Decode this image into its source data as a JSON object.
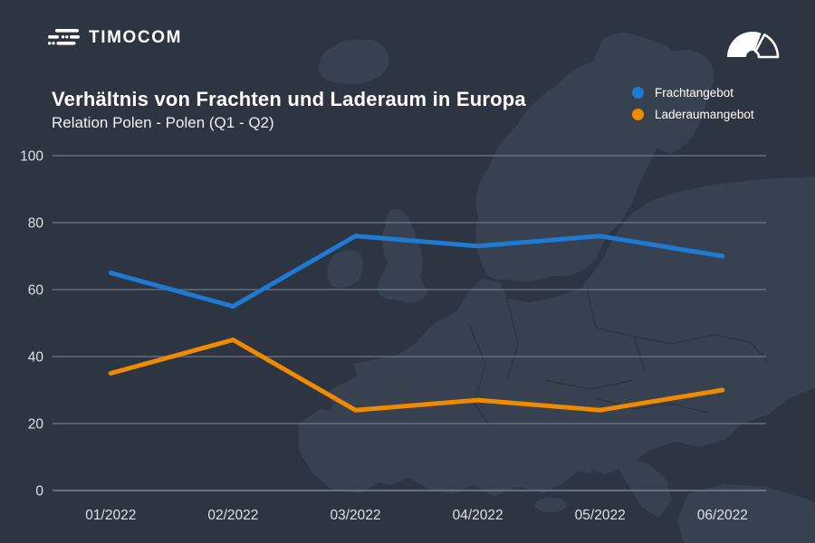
{
  "header": {
    "logo_text": "TIMOCOM"
  },
  "title": "Verhältnis von Frachten und Laderaum in Europa",
  "subtitle": "Relation Polen - Polen (Q1 - Q2)",
  "legend": {
    "items": [
      {
        "label": "Frachtangebot",
        "color": "#1e7ad2"
      },
      {
        "label": "Laderaumangebot",
        "color": "#f08a00"
      }
    ]
  },
  "chart_data": {
    "type": "line",
    "title": "Verhältnis von Frachten und Laderaum in Europa",
    "subtitle": "Relation Polen - Polen (Q1 - Q2)",
    "categories": [
      "01/2022",
      "02/2022",
      "03/2022",
      "04/2022",
      "05/2022",
      "06/2022"
    ],
    "series": [
      {
        "name": "Frachtangebot",
        "color": "#1e7ad2",
        "values": [
          65,
          55,
          76,
          73,
          76,
          70
        ]
      },
      {
        "name": "Laderaumangebot",
        "color": "#f08a00",
        "values": [
          35,
          45,
          24,
          27,
          24,
          30
        ]
      }
    ],
    "y_ticks": [
      0,
      20,
      40,
      60,
      80,
      100
    ],
    "ylim": [
      0,
      100
    ],
    "xlabel": "",
    "ylabel": "",
    "grid": true,
    "legend_position": "top-right"
  },
  "colors": {
    "background": "#2d3543",
    "grid": "#7b8696",
    "tick_text": "#dde1e6",
    "freight_blue": "#1e7ad2",
    "cargo_orange": "#f08a00"
  }
}
